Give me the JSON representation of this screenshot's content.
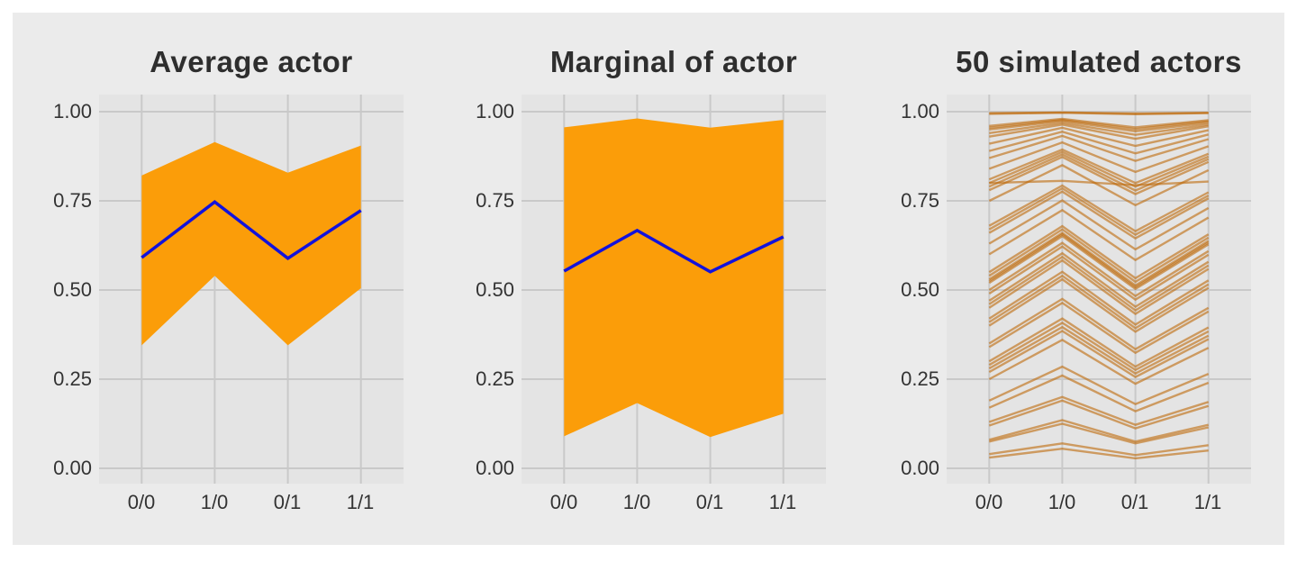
{
  "colors": {
    "page_bg": "#FFFFFF",
    "figure_bg": "#EBEBEB",
    "panel_bg": "#E4E4E4",
    "grid": "#C9C9C9",
    "text": "#333333",
    "band": "#FB9D09",
    "mean_line": "#1212DC",
    "sim_line": "rgba(190,105,8,0.6)"
  },
  "axes": {
    "x_labels": [
      "0/0",
      "1/0",
      "0/1",
      "1/1"
    ],
    "y_labels": [
      "1.00",
      "0.75",
      "0.50",
      "0.25",
      "0.00"
    ],
    "y_values": [
      1,
      0.75,
      0.5,
      0.25,
      0
    ]
  },
  "chart_data": [
    {
      "type": "area",
      "title": "Average actor",
      "categories": [
        "0/0",
        "1/0",
        "0/1",
        "1/1"
      ],
      "mean": [
        0.591,
        0.747,
        0.589,
        0.723
      ],
      "band_lower": [
        0.345,
        0.54,
        0.345,
        0.505
      ],
      "band_upper": [
        0.821,
        0.915,
        0.829,
        0.905
      ],
      "ylim": [
        0,
        1
      ],
      "yticks": [
        0,
        0.25,
        0.5,
        0.75,
        1
      ],
      "grid": true,
      "legend": "none"
    },
    {
      "type": "area",
      "title": "Marginal of actor",
      "categories": [
        "0/0",
        "1/0",
        "0/1",
        "1/1"
      ],
      "mean": [
        0.553,
        0.667,
        0.551,
        0.649
      ],
      "band_lower": [
        0.09,
        0.183,
        0.088,
        0.153
      ],
      "band_upper": [
        0.956,
        0.981,
        0.955,
        0.977
      ],
      "ylim": [
        0,
        1
      ],
      "yticks": [
        0,
        0.25,
        0.5,
        0.75,
        1
      ],
      "grid": true,
      "legend": "none"
    },
    {
      "type": "line",
      "title": "50 simulated actors",
      "categories": [
        "0/0",
        "1/0",
        "0/1",
        "1/1"
      ],
      "ylim": [
        0,
        1
      ],
      "yticks": [
        0,
        0.25,
        0.5,
        0.75,
        1
      ],
      "grid": true,
      "legend": "none",
      "series": [
        [
          0.03,
          0.055,
          0.028,
          0.05
        ],
        [
          0.04,
          0.07,
          0.037,
          0.065
        ],
        [
          0.075,
          0.125,
          0.07,
          0.115
        ],
        [
          0.08,
          0.135,
          0.075,
          0.122
        ],
        [
          0.12,
          0.19,
          0.112,
          0.175
        ],
        [
          0.13,
          0.2,
          0.122,
          0.186
        ],
        [
          0.17,
          0.26,
          0.16,
          0.24
        ],
        [
          0.19,
          0.285,
          0.18,
          0.265
        ],
        [
          0.25,
          0.36,
          0.237,
          0.338
        ],
        [
          0.27,
          0.385,
          0.256,
          0.362
        ],
        [
          0.28,
          0.396,
          0.266,
          0.372
        ],
        [
          0.29,
          0.408,
          0.276,
          0.384
        ],
        [
          0.3,
          0.42,
          0.285,
          0.395
        ],
        [
          0.34,
          0.464,
          0.324,
          0.44
        ],
        [
          0.35,
          0.475,
          0.334,
          0.45
        ],
        [
          0.4,
          0.53,
          0.383,
          0.506
        ],
        [
          0.41,
          0.54,
          0.393,
          0.516
        ],
        [
          0.42,
          0.551,
          0.403,
          0.527
        ],
        [
          0.45,
          0.583,
          0.433,
          0.559
        ],
        [
          0.46,
          0.593,
          0.443,
          0.569
        ],
        [
          0.47,
          0.603,
          0.453,
          0.579
        ],
        [
          0.49,
          0.622,
          0.473,
          0.599
        ],
        [
          0.5,
          0.632,
          0.483,
          0.609
        ],
        [
          0.52,
          0.651,
          0.503,
          0.628
        ],
        [
          0.525,
          0.656,
          0.508,
          0.633
        ],
        [
          0.53,
          0.66,
          0.513,
          0.638
        ],
        [
          0.54,
          0.67,
          0.523,
          0.647
        ],
        [
          0.55,
          0.679,
          0.533,
          0.656
        ],
        [
          0.6,
          0.724,
          0.584,
          0.703
        ],
        [
          0.63,
          0.751,
          0.614,
          0.73
        ],
        [
          0.66,
          0.776,
          0.645,
          0.757
        ],
        [
          0.67,
          0.785,
          0.655,
          0.765
        ],
        [
          0.68,
          0.793,
          0.665,
          0.774
        ],
        [
          0.75,
          0.85,
          0.738,
          0.836
        ],
        [
          0.78,
          0.873,
          0.769,
          0.859
        ],
        [
          0.79,
          0.88,
          0.779,
          0.867
        ],
        [
          0.8,
          0.806,
          0.794,
          0.804
        ],
        [
          0.8,
          0.887,
          0.79,
          0.874
        ],
        [
          0.81,
          0.894,
          0.8,
          0.882
        ],
        [
          0.84,
          0.914,
          0.831,
          0.903
        ],
        [
          0.87,
          0.932,
          0.862,
          0.923
        ],
        [
          0.89,
          0.944,
          0.883,
          0.936
        ],
        [
          0.91,
          0.955,
          0.904,
          0.948
        ],
        [
          0.93,
          0.964,
          0.924,
          0.959
        ],
        [
          0.94,
          0.969,
          0.935,
          0.964
        ],
        [
          0.95,
          0.974,
          0.945,
          0.969
        ],
        [
          0.955,
          0.977,
          0.951,
          0.973
        ],
        [
          0.96,
          0.98,
          0.956,
          0.976
        ],
        [
          0.994,
          0.997,
          0.993,
          0.996
        ],
        [
          0.996,
          0.998,
          0.995,
          0.997
        ]
      ]
    }
  ]
}
